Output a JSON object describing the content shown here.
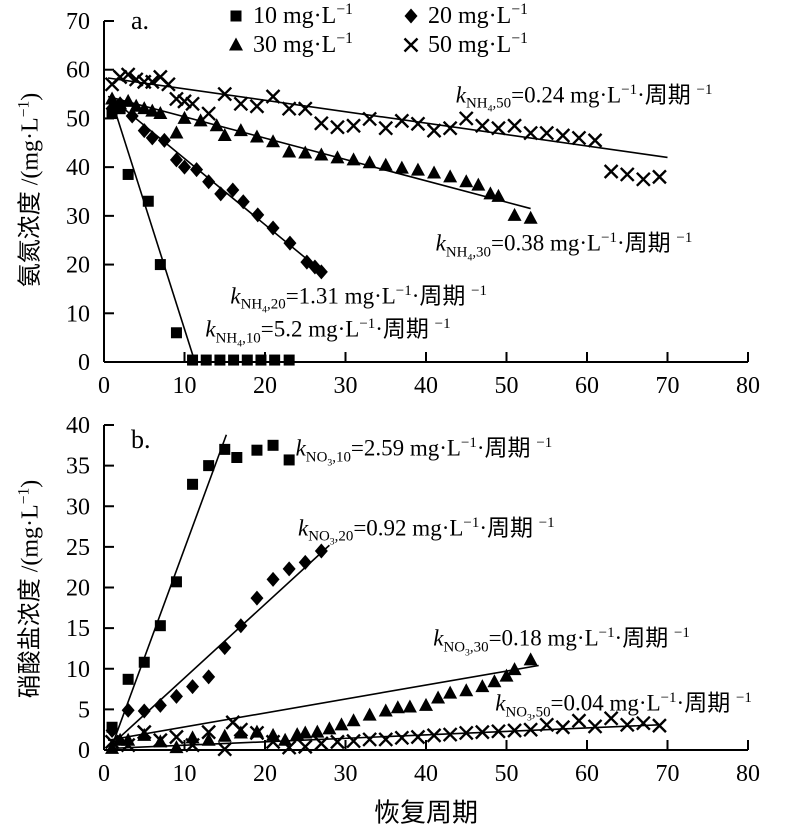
{
  "legend": {
    "items": [
      {
        "label": "10 mg·L⁻¹",
        "marker": "square"
      },
      {
        "label": "20 mg·L⁻¹",
        "marker": "diamond"
      },
      {
        "label": "30 mg·L⁻¹",
        "marker": "triangle"
      },
      {
        "label": "50 mg·L⁻¹",
        "marker": "cross"
      }
    ]
  },
  "chart_data": [
    {
      "type": "scatter",
      "panel_label": "a.",
      "xlabel": "",
      "ylabel": "氨氮浓度 /(mg·L⁻¹)",
      "xlim": [
        0,
        80
      ],
      "ylim": [
        0,
        70
      ],
      "xticks": [
        0,
        10,
        20,
        30,
        40,
        50,
        60,
        70,
        80
      ],
      "yticks": [
        0,
        10,
        20,
        30,
        40,
        50,
        60,
        70
      ],
      "grid": false,
      "legend_position": "top",
      "series": [
        {
          "name": "10 mg·L⁻¹",
          "marker": "square",
          "x": [
            1,
            2,
            3,
            5.5,
            7,
            9,
            11,
            12.7,
            14.4,
            16.1,
            17.8,
            19.5,
            21.2,
            23
          ],
          "y": [
            51,
            52,
            38.5,
            33,
            20,
            6,
            0.4,
            0.4,
            0.4,
            0.4,
            0.4,
            0.4,
            0.4,
            0.4
          ],
          "fit": [
            [
              1,
              53.5
            ],
            [
              11.3,
              0
            ]
          ]
        },
        {
          "name": "20 mg·L⁻¹",
          "marker": "diamond",
          "x": [
            1,
            2,
            3.5,
            5,
            6,
            7.5,
            9,
            10,
            11.5,
            13,
            14.5,
            16,
            17.3,
            19.1,
            21,
            23.1,
            25.2,
            26.2,
            27
          ],
          "y": [
            52,
            53,
            50.5,
            47.5,
            46,
            45.5,
            41.5,
            40,
            39.5,
            37,
            34.5,
            35.3,
            32.9,
            30.2,
            27.5,
            24.4,
            20.5,
            19.5,
            18.5
          ],
          "fit": [
            [
              1,
              54
            ],
            [
              27.5,
              18
            ]
          ]
        },
        {
          "name": "30 mg·L⁻¹",
          "marker": "triangle",
          "x": [
            1,
            2,
            3,
            4,
            5,
            6,
            7,
            9,
            10,
            12,
            14,
            15,
            17,
            19,
            21,
            23,
            25,
            27,
            29,
            31,
            33,
            35,
            37,
            39,
            41,
            43,
            45,
            46.5,
            48,
            49,
            51,
            53
          ],
          "y": [
            54,
            53,
            53.5,
            52.5,
            52,
            51.5,
            51,
            47,
            50,
            49.5,
            48.5,
            46.5,
            47.5,
            46.2,
            45.2,
            43.1,
            42.9,
            42.5,
            41.9,
            41.5,
            40.9,
            40.4,
            39.8,
            39.4,
            38.8,
            38,
            37,
            36.3,
            34.5,
            34,
            30.1,
            29.5
          ],
          "fit": [
            [
              0.5,
              54.5
            ],
            [
              53,
              31.5
            ]
          ]
        },
        {
          "name": "50 mg·L⁻¹",
          "marker": "cross",
          "x": [
            1,
            2,
            3,
            4,
            5,
            6,
            7,
            8,
            9,
            10,
            11,
            13,
            15,
            17,
            19,
            21,
            23,
            25,
            27,
            29,
            31,
            33,
            35,
            37,
            39,
            41,
            43,
            45,
            47,
            49,
            51,
            53,
            55,
            57,
            59,
            61,
            63,
            65,
            67,
            69
          ],
          "y": [
            57,
            58.5,
            59,
            58,
            57.5,
            57.5,
            58.5,
            57,
            54,
            53.5,
            53,
            51,
            55,
            53,
            52.5,
            54.5,
            52,
            52,
            49,
            48.2,
            48.5,
            49.9,
            48,
            49.5,
            48.9,
            47.5,
            48,
            50,
            48.5,
            48,
            48.5,
            47,
            47,
            46.5,
            46,
            45.5,
            39.1,
            38.5,
            37.5,
            38
          ],
          "fit": [
            [
              0.5,
              58.3
            ],
            [
              70,
              42
            ]
          ]
        }
      ],
      "annotations": [
        {
          "species": "NH4",
          "conc": "50",
          "value": "0.24",
          "units": "mg·L⁻¹·周期 ⁻¹",
          "ax": 43.7,
          "ay": 55.3
        },
        {
          "species": "NH4",
          "conc": "30",
          "value": "0.38",
          "units": "mg·L⁻¹·周期 ⁻¹",
          "ax": 41.2,
          "ay": 24.8
        },
        {
          "species": "NH4",
          "conc": "20",
          "value": "1.31",
          "units": "mg·L⁻¹·周期 ⁻¹",
          "ax": 15.7,
          "ay": 14.0
        },
        {
          "species": "NH4",
          "conc": "10",
          "value": "5.2",
          "units": "mg·L⁻¹·周期 ⁻¹",
          "ax": 12.6,
          "ay": 7.2
        }
      ]
    },
    {
      "type": "scatter",
      "panel_label": "b.",
      "xlabel": "恢复周期",
      "ylabel": "硝酸盐浓度 /(mg·L⁻¹)",
      "xlim": [
        0,
        80
      ],
      "ylim": [
        0,
        40
      ],
      "xticks": [
        0,
        10,
        20,
        30,
        40,
        50,
        60,
        70,
        80
      ],
      "yticks": [
        0,
        5,
        10,
        15,
        20,
        25,
        30,
        35,
        40
      ],
      "grid": false,
      "series": [
        {
          "name": "10 mg·L⁻¹",
          "marker": "square",
          "x": [
            1,
            3,
            5,
            7,
            9,
            11,
            13,
            15,
            16.5,
            19,
            21,
            23
          ],
          "y": [
            2.8,
            8.7,
            10.8,
            15.3,
            20.7,
            32.7,
            35,
            37,
            36,
            36.9,
            37.5,
            35.7
          ],
          "fit": [
            [
              0.8,
              0
            ],
            [
              15.2,
              38.8
            ]
          ]
        },
        {
          "name": "20 mg·L⁻¹",
          "marker": "diamond",
          "x": [
            1,
            3,
            5,
            7,
            9,
            11,
            13,
            15,
            17,
            19,
            21,
            23,
            25,
            27
          ],
          "y": [
            2.4,
            4.9,
            4.8,
            5.5,
            6.6,
            7.8,
            9,
            12.6,
            15.3,
            18.7,
            21,
            22.3,
            23.1,
            24.5
          ],
          "fit": [
            [
              1,
              0.7
            ],
            [
              28,
              25.2
            ]
          ]
        },
        {
          "name": "30 mg·L⁻¹",
          "marker": "triangle",
          "x": [
            1,
            2,
            3,
            5,
            7,
            9,
            11,
            13,
            15,
            17,
            19,
            21,
            22.5,
            24,
            25,
            26.5,
            28,
            29.5,
            31,
            33,
            35,
            36.5,
            38,
            40,
            41.5,
            43,
            45,
            47,
            48.5,
            50,
            51,
            53
          ],
          "y": [
            0.2,
            1.2,
            1.2,
            1.8,
            1,
            0.3,
            1.5,
            1.2,
            1.7,
            2.1,
            2.2,
            1.8,
            1.2,
            1.9,
            2.1,
            2.2,
            2.6,
            3.1,
            3.6,
            4.3,
            4.8,
            5.2,
            5.3,
            5.5,
            6.4,
            7,
            7.3,
            7.8,
            8.4,
            9.1,
            9.9,
            11.1
          ],
          "fit": [
            [
              0.5,
              1.2
            ],
            [
              54,
              10.4
            ]
          ]
        },
        {
          "name": "50 mg·L⁻¹",
          "marker": "cross",
          "x": [
            1,
            3,
            5,
            7,
            9,
            11,
            13,
            15,
            16,
            17,
            19,
            21,
            23,
            25,
            27,
            29,
            31,
            33,
            35,
            37,
            39,
            41,
            43,
            45,
            47,
            49,
            51,
            53,
            55,
            57,
            59,
            61,
            63,
            65,
            67,
            69
          ],
          "y": [
            1,
            0.6,
            2.2,
            1.2,
            1.6,
            0.6,
            2.2,
            0.1,
            3.4,
            2.5,
            2.1,
            1,
            0.3,
            0.4,
            0.8,
            1,
            1.1,
            1.3,
            1.3,
            1.5,
            1.6,
            1.8,
            1.9,
            2.1,
            2.2,
            2.3,
            2.4,
            2.5,
            3.1,
            2.8,
            3.6,
            2.9,
            3.9,
            3.1,
            3.3,
            3
          ],
          "fit": [
            [
              1,
              0.2
            ],
            [
              69,
              3.1
            ]
          ]
        }
      ],
      "annotations": [
        {
          "species": "NO3",
          "conc": "10",
          "value": "2.59",
          "units": "mg·L⁻¹·周期 ⁻¹",
          "ax": 23.8,
          "ay": 37.4
        },
        {
          "species": "NO3",
          "conc": "20",
          "value": "0.92",
          "units": "mg·L⁻¹·周期 ⁻¹",
          "ax": 24.1,
          "ay": 27.6
        },
        {
          "species": "NO3",
          "conc": "30",
          "value": "0.18",
          "units": "mg·L⁻¹·周期 ⁻¹",
          "ax": 40.9,
          "ay": 14.0
        },
        {
          "species": "NO3",
          "conc": "50",
          "value": "0.04",
          "units": "mg·L⁻¹·周期 ⁻¹",
          "ax": 48.6,
          "ay": 6.0
        }
      ]
    }
  ]
}
